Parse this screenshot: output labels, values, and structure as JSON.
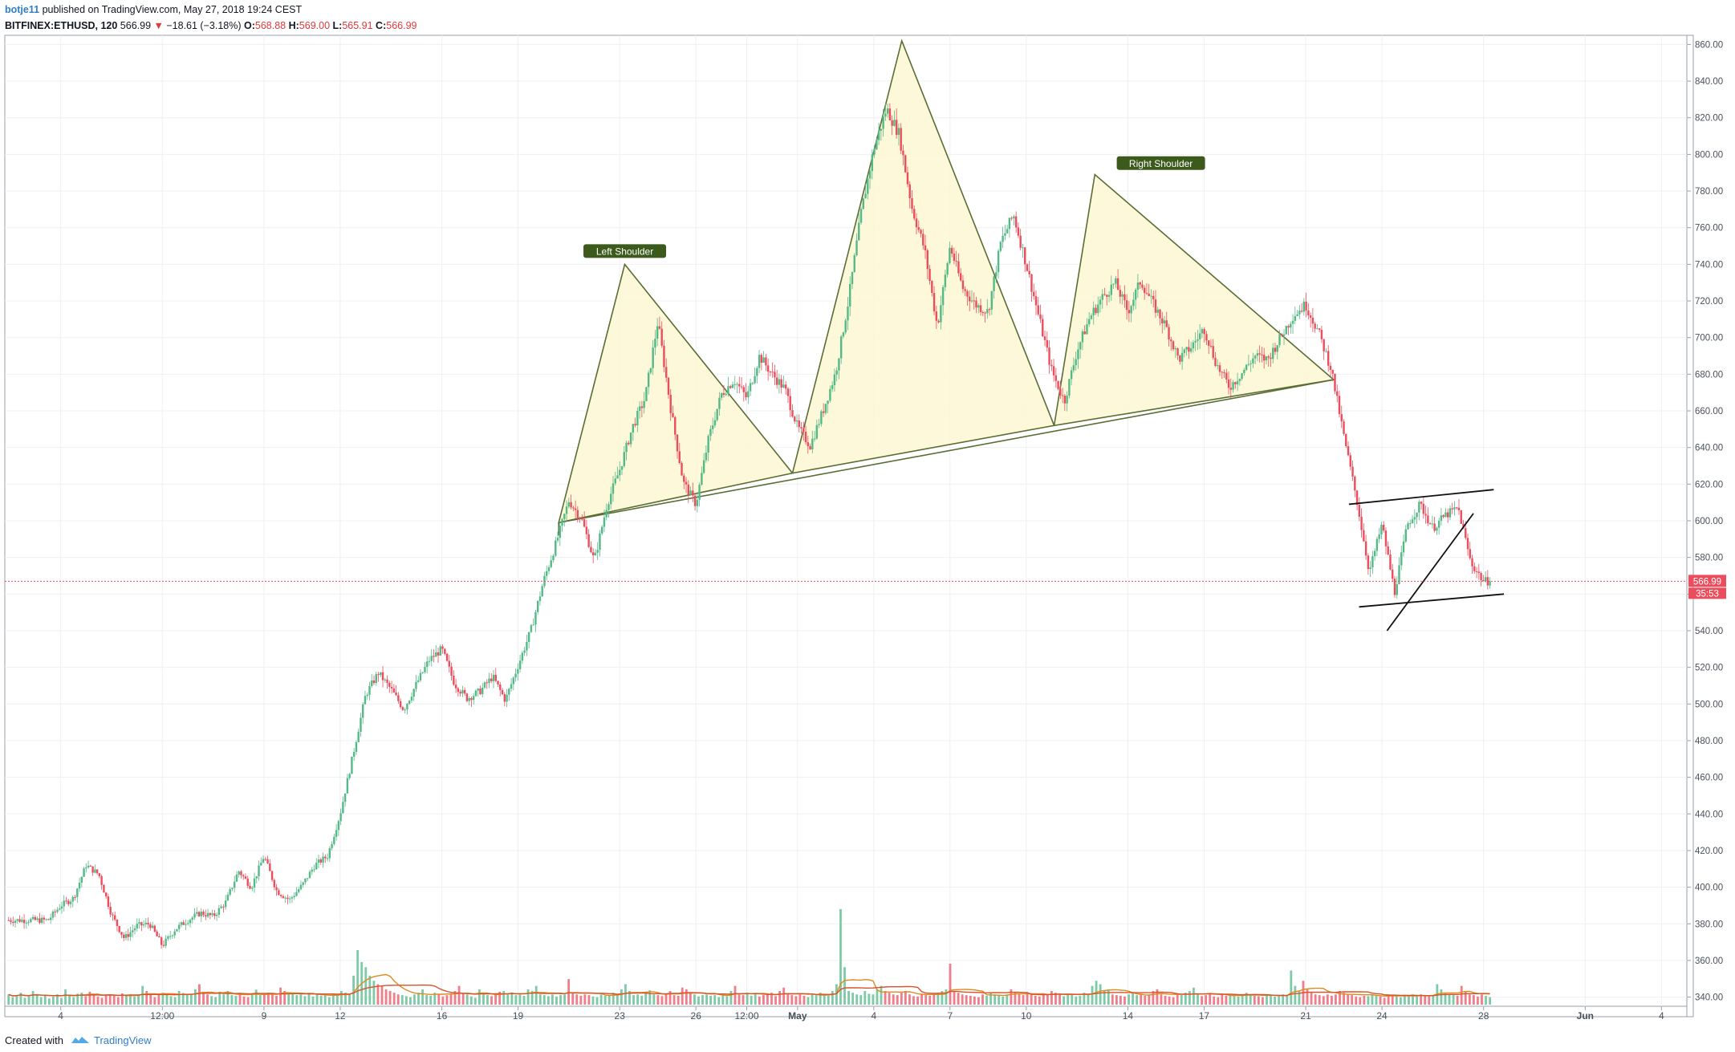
{
  "header": {
    "user": "botje11",
    "published": "published on TradingView.com, May 27, 2018 19:24 CEST",
    "symbol": "BITFINEX:ETHUSD, 120",
    "last": "566.99",
    "change": "−18.61 (−3.18%)",
    "open_label": "O:",
    "open": "568.88",
    "high_label": "H:",
    "high": "569.00",
    "low_label": "L:",
    "low": "565.91",
    "close_label": "C:",
    "close": "566.99"
  },
  "footer": {
    "created_with": "Created with",
    "brand": "TradingView",
    "brand_icon": "tradingview-logo-icon"
  },
  "chart_data": {
    "type": "candlestick",
    "symbol": "BITFINEX:ETHUSD",
    "interval": "120",
    "ylim": [
      335,
      865
    ],
    "yticks": [
      860,
      840,
      820,
      800,
      780,
      760,
      740,
      720,
      700,
      680,
      660,
      640,
      620,
      600,
      580,
      560,
      540,
      520,
      500,
      480,
      460,
      440,
      420,
      400,
      380,
      360,
      340
    ],
    "xticks": [
      {
        "label": "4",
        "x": 0.5
      },
      {
        "label": "12:00",
        "x": 4.5
      },
      {
        "label": "9",
        "x": 8.5
      },
      {
        "label": "12",
        "x": 11.5
      },
      {
        "label": "16",
        "x": 15.5
      },
      {
        "label": "19",
        "x": 18.5
      },
      {
        "label": "23",
        "x": 22.5
      },
      {
        "label": "26",
        "x": 25.5
      },
      {
        "label": "12:00",
        "x": 27.5
      },
      {
        "label": "May",
        "x": 29.5
      },
      {
        "label": "4",
        "x": 32.5
      },
      {
        "label": "7",
        "x": 35.5
      },
      {
        "label": "10",
        "x": 38.5
      },
      {
        "label": "14",
        "x": 42.5
      },
      {
        "label": "17",
        "x": 45.5
      },
      {
        "label": "21",
        "x": 49.5
      },
      {
        "label": "24",
        "x": 52.5
      },
      {
        "label": "28",
        "x": 56.5
      },
      {
        "label": "Jun",
        "x": 60.5
      },
      {
        "label": "4",
        "x": 63.5
      }
    ],
    "xlim": [
      -1.7,
      64.5
    ],
    "last_price": 566.99,
    "last_price_label": "566.99",
    "countdown_label": "35:53",
    "price_path": [
      [
        0,
        382
      ],
      [
        0.5,
        390
      ],
      [
        1,
        394
      ],
      [
        1.5,
        412
      ],
      [
        2,
        407
      ],
      [
        2.5,
        385
      ],
      [
        3,
        372
      ],
      [
        3.5,
        379
      ],
      [
        4,
        380
      ],
      [
        4.5,
        368
      ],
      [
        5,
        377
      ],
      [
        5.5,
        382
      ],
      [
        6,
        386
      ],
      [
        6.5,
        384
      ],
      [
        7,
        392
      ],
      [
        7.5,
        409
      ],
      [
        8,
        400
      ],
      [
        8.5,
        417
      ],
      [
        9,
        398
      ],
      [
        9.5,
        393
      ],
      [
        10,
        401
      ],
      [
        10.5,
        412
      ],
      [
        11,
        417
      ],
      [
        11.5,
        440
      ],
      [
        12,
        472
      ],
      [
        12.5,
        505
      ],
      [
        13,
        517
      ],
      [
        13.5,
        508
      ],
      [
        14,
        497
      ],
      [
        14.5,
        511
      ],
      [
        15,
        524
      ],
      [
        15.5,
        530
      ],
      [
        16,
        511
      ],
      [
        16.5,
        503
      ],
      [
        17,
        507
      ],
      [
        17.5,
        515
      ],
      [
        18,
        502
      ],
      [
        18.5,
        521
      ],
      [
        19,
        540
      ],
      [
        19.5,
        567
      ],
      [
        20,
        588
      ],
      [
        20.5,
        611
      ],
      [
        21,
        601
      ],
      [
        21.5,
        578
      ],
      [
        22,
        609
      ],
      [
        22.5,
        628
      ],
      [
        23,
        651
      ],
      [
        23.5,
        667
      ],
      [
        24,
        709
      ],
      [
        24.5,
        662
      ],
      [
        25,
        621
      ],
      [
        25.5,
        609
      ],
      [
        26,
        645
      ],
      [
        26.5,
        669
      ],
      [
        27,
        677
      ],
      [
        27.5,
        667
      ],
      [
        28,
        690
      ],
      [
        28.5,
        680
      ],
      [
        29,
        672
      ],
      [
        29.5,
        651
      ],
      [
        30,
        641
      ],
      [
        30.5,
        660
      ],
      [
        31,
        681
      ],
      [
        31.5,
        720
      ],
      [
        32,
        768
      ],
      [
        32.5,
        803
      ],
      [
        33,
        825
      ],
      [
        33.5,
        811
      ],
      [
        34,
        771
      ],
      [
        34.5,
        748
      ],
      [
        35,
        706
      ],
      [
        35.5,
        750
      ],
      [
        36,
        727
      ],
      [
        36.5,
        718
      ],
      [
        37,
        714
      ],
      [
        37.5,
        752
      ],
      [
        38,
        767
      ],
      [
        38.5,
        740
      ],
      [
        39,
        711
      ],
      [
        39.5,
        682
      ],
      [
        40,
        665
      ],
      [
        40.5,
        693
      ],
      [
        41,
        711
      ],
      [
        41.5,
        722
      ],
      [
        42,
        730
      ],
      [
        42.5,
        714
      ],
      [
        43,
        731
      ],
      [
        43.5,
        718
      ],
      [
        44,
        706
      ],
      [
        44.5,
        688
      ],
      [
        45,
        695
      ],
      [
        45.5,
        705
      ],
      [
        46,
        685
      ],
      [
        46.5,
        673
      ],
      [
        47,
        681
      ],
      [
        47.5,
        690
      ],
      [
        48,
        688
      ],
      [
        48.5,
        700
      ],
      [
        49,
        712
      ],
      [
        49.5,
        718
      ],
      [
        50,
        703
      ],
      [
        50.5,
        683
      ],
      [
        51,
        646
      ],
      [
        51.5,
        612
      ],
      [
        52,
        572
      ],
      [
        52.5,
        598
      ],
      [
        53,
        561
      ],
      [
        53.5,
        598
      ],
      [
        54,
        609
      ],
      [
        54.5,
        596
      ],
      [
        55,
        603
      ],
      [
        55.5,
        607
      ],
      [
        56,
        577
      ],
      [
        56.5,
        567
      ]
    ],
    "volume_ylim": [
      0,
      300
    ],
    "volume": [
      30,
      22,
      28,
      35,
      20,
      25,
      40,
      30,
      22,
      26,
      18,
      24,
      30,
      20,
      45,
      28,
      22,
      32,
      35,
      25,
      38,
      30,
      24,
      20,
      28,
      30,
      26,
      22,
      33,
      27,
      30,
      24,
      26,
      55,
      40,
      30,
      22,
      28,
      35,
      30,
      25,
      22,
      40,
      34,
      28,
      30,
      45,
      60,
      38,
      30,
      25,
      22,
      38,
      30,
      40,
      28,
      26,
      33,
      24,
      22,
      30,
      44,
      28,
      32,
      35,
      30,
      26,
      50,
      40,
      30,
      35,
      28,
      30,
      25,
      35,
      24,
      30,
      26,
      28,
      22,
      30,
      28,
      40,
      35,
      30,
      85,
      160,
      125,
      110,
      85,
      70,
      60,
      55,
      45,
      40,
      35,
      30,
      28,
      25,
      22,
      30,
      35,
      45,
      28,
      26,
      35,
      30,
      24,
      28,
      30,
      40,
      55,
      32,
      30,
      24,
      20,
      45,
      30,
      28,
      25,
      30,
      38,
      40,
      30,
      36,
      28,
      30,
      26,
      45,
      40,
      55,
      30,
      28,
      25,
      30,
      24,
      28,
      30,
      75,
      35,
      30,
      26,
      30,
      28,
      24,
      22,
      30,
      26,
      28,
      35,
      30,
      45,
      60,
      40,
      28,
      30,
      26,
      35,
      42,
      30,
      28,
      25,
      30,
      40,
      28,
      26,
      50,
      45,
      35,
      30,
      24,
      28,
      30,
      26,
      28,
      22,
      30,
      25,
      40,
      55,
      30,
      28,
      35,
      26,
      30,
      24,
      28,
      30,
      35,
      25,
      40,
      50,
      30,
      28,
      25,
      30,
      26,
      22,
      30,
      28,
      35,
      30,
      26,
      40,
      60,
      280,
      110,
      40,
      35,
      30,
      28,
      40,
      32,
      30,
      45,
      55,
      40,
      35,
      30,
      28,
      35,
      40,
      30,
      25,
      24,
      30,
      28,
      26,
      30,
      35,
      40,
      45,
      120,
      40,
      35,
      30,
      28,
      26,
      24,
      22,
      30,
      26,
      35,
      30,
      28,
      24,
      30,
      45,
      38,
      30,
      28,
      35,
      30,
      26,
      24,
      30,
      28,
      40,
      35,
      30,
      25,
      28,
      30,
      24,
      26,
      35,
      30,
      55,
      70,
      60,
      40,
      45,
      30,
      28,
      26,
      24,
      30,
      35,
      28,
      30,
      26,
      28,
      40,
      45,
      30,
      26,
      24,
      22,
      30,
      28,
      35,
      40,
      50,
      30,
      25,
      28,
      30,
      24,
      22,
      30,
      26,
      28,
      30,
      24,
      30,
      35,
      28,
      26,
      25,
      22,
      30,
      28,
      24,
      25,
      30,
      28,
      100,
      55,
      40,
      70,
      45,
      35,
      30,
      28,
      25,
      30,
      26,
      30,
      40,
      35,
      30,
      28,
      24,
      22,
      26,
      25,
      30,
      28,
      24,
      20,
      30,
      28,
      25,
      22,
      26,
      28,
      30,
      25,
      30,
      28,
      26,
      28,
      60,
      45,
      35,
      30,
      28,
      26,
      55,
      40,
      30,
      28,
      24,
      30,
      26,
      22
    ],
    "annotations": [
      {
        "text": "Left Shoulder",
        "x": 22.7,
        "price": 747
      },
      {
        "text": "Right Shoulder",
        "x": 43.8,
        "price": 795
      }
    ]
  }
}
